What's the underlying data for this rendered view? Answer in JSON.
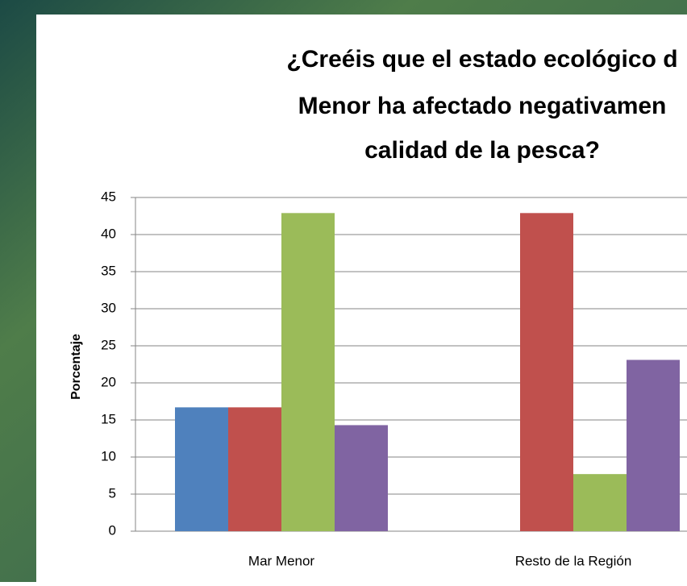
{
  "chart_data": {
    "type": "bar",
    "title_lines": [
      "¿Creéis que el estado ecológico d",
      "Menor ha afectado negativamen",
      "calidad de la pesca?"
    ],
    "y_label": "Porcentaje",
    "categories": [
      "Mar Menor",
      "Resto de la Región"
    ],
    "series": [
      {
        "color": "#4f81bd",
        "values": [
          16.7,
          0
        ]
      },
      {
        "color": "#c0504d",
        "values": [
          16.7,
          42.9
        ]
      },
      {
        "color": "#9bbb59",
        "values": [
          42.9,
          7.7
        ]
      },
      {
        "color": "#8064a2",
        "values": [
          14.3,
          23.1
        ]
      }
    ],
    "ylim": [
      0,
      45
    ],
    "yticks": [
      0,
      5,
      10,
      15,
      20,
      25,
      30,
      35,
      40,
      45
    ],
    "grid": true
  }
}
